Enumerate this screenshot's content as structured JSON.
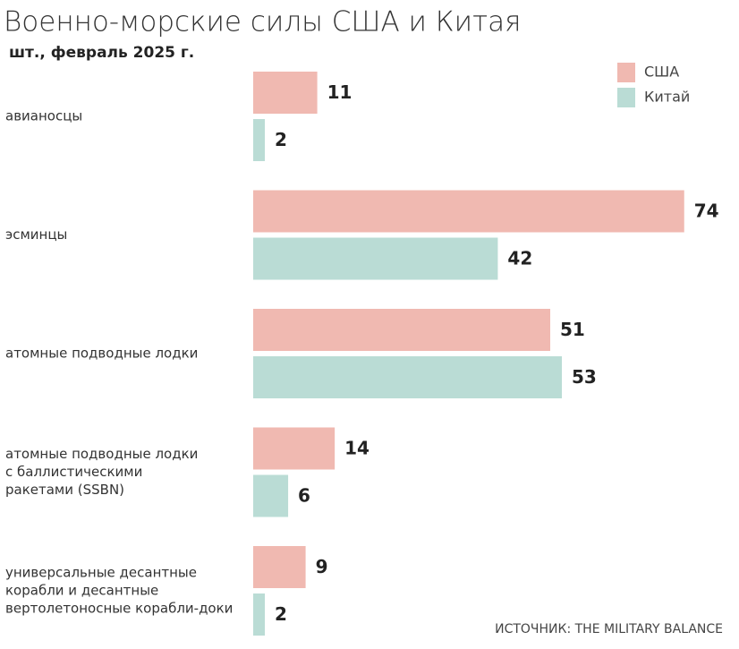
{
  "chart_data": {
    "type": "bar",
    "title": "Военно-морские силы США и Китая",
    "subtitle": "шт., февраль 2025 г.",
    "source": "ИСТОЧНИК: THE MILITARY BALANCE",
    "categories": [
      [
        "авианосцы"
      ],
      [
        "эсминцы"
      ],
      [
        "атомные подводные лодки"
      ],
      [
        "атомные подводные лодки",
        "с баллистическими",
        "ракетами (SSBN)"
      ],
      [
        "универсальные десантные",
        "корабли и десантные",
        "вертолетоносные корабли-доки"
      ]
    ],
    "series": [
      {
        "name": "США",
        "color": "#f0b9b1",
        "values": [
          11,
          74,
          51,
          14,
          9
        ]
      },
      {
        "name": "Китай",
        "color": "#badcd5",
        "values": [
          2,
          42,
          53,
          6,
          2
        ]
      }
    ]
  }
}
